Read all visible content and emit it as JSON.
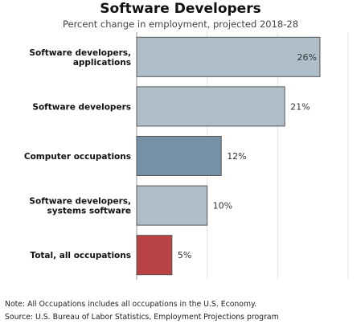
{
  "chart_data": {
    "type": "bar",
    "orientation": "horizontal",
    "title": "Software Developers",
    "subtitle": "Percent change in employment, projected 2018-28",
    "categories": [
      "Software developers, applications",
      "Software developers",
      "Computer occupations",
      "Software developers, systems software",
      "Total, all occupations"
    ],
    "category_lines": [
      [
        "Software developers,",
        "applications"
      ],
      [
        "Software developers"
      ],
      [
        "Computer occupations"
      ],
      [
        "Software developers,",
        "systems software"
      ],
      [
        "Total, all occupations"
      ]
    ],
    "values": [
      26,
      21,
      12,
      10,
      5
    ],
    "value_labels": [
      "26%",
      "21%",
      "12%",
      "10%",
      "5%"
    ],
    "bar_colors": [
      "#aebfca",
      "#aebfca",
      "#7690a5",
      "#aebfca",
      "#b84244"
    ],
    "xlim": [
      0,
      30
    ],
    "grid": true,
    "legend": "none"
  },
  "footnotes": {
    "note": "Note: All Occupations includes all occupations in the U.S. Economy.",
    "source": "Source: U.S. Bureau of Labor Statistics, Employment Projections program"
  }
}
